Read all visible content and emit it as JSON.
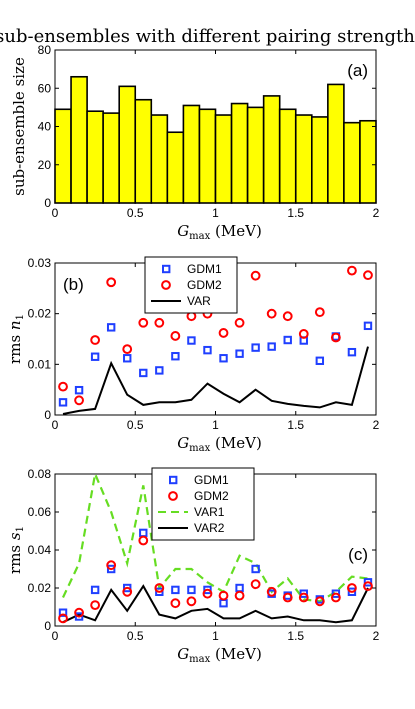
{
  "title": "sub-ensembles with different pairing strength",
  "chart_data": [
    {
      "type": "bar",
      "panel": "(a)",
      "ylabel": "sub-ensemble size",
      "xlabel": "G_max (MeV)",
      "xlabel_main": "G",
      "xlabel_sub": "max",
      "xlabel_unit": " (MeV)",
      "xlim": [
        0,
        2
      ],
      "ylim": [
        0,
        80
      ],
      "xticks": [
        "0",
        "0.5",
        "1",
        "1.5",
        "2"
      ],
      "yticks": [
        "0",
        "20",
        "40",
        "60",
        "80"
      ],
      "x": [
        0.05,
        0.15,
        0.25,
        0.35,
        0.45,
        0.55,
        0.65,
        0.75,
        0.85,
        0.95,
        1.05,
        1.15,
        1.25,
        1.35,
        1.45,
        1.55,
        1.65,
        1.75,
        1.85,
        1.95
      ],
      "bin_width": 0.1,
      "values": [
        49,
        66,
        48,
        47,
        61,
        54,
        46,
        37,
        51,
        49,
        46,
        52,
        50,
        56,
        49,
        46,
        45,
        62,
        42,
        43
      ],
      "bar_color": "#ffff00"
    },
    {
      "type": "line",
      "panel": "(b)",
      "ylabel_main": "rms ",
      "ylabel_var": "n",
      "ylabel_sub": "1",
      "xlabel_main": "G",
      "xlabel_sub": "max",
      "xlabel_unit": " (MeV)",
      "xlim": [
        0,
        2
      ],
      "ylim": [
        0,
        0.03
      ],
      "xticks": [
        "0",
        "0.5",
        "1",
        "1.5",
        "2"
      ],
      "yticks": [
        "0",
        "0.01",
        "0.02",
        "0.03"
      ],
      "legend_position": "top-center",
      "x": [
        0.05,
        0.15,
        0.25,
        0.35,
        0.45,
        0.55,
        0.65,
        0.75,
        0.85,
        0.95,
        1.05,
        1.15,
        1.25,
        1.35,
        1.45,
        1.55,
        1.65,
        1.75,
        1.85,
        1.95
      ],
      "series": [
        {
          "name": "GDM1",
          "marker": "square",
          "color": "#1f3fff",
          "values": [
            0.0025,
            0.0049,
            0.0115,
            0.0173,
            0.0112,
            0.0083,
            0.0088,
            0.0116,
            0.0147,
            0.0128,
            0.0112,
            0.0121,
            0.0133,
            0.0135,
            0.0148,
            0.0147,
            0.0107,
            0.0155,
            0.0124,
            0.0176
          ]
        },
        {
          "name": "GDM2",
          "marker": "circle",
          "color": "#ff0000",
          "values": [
            0.0056,
            0.0029,
            0.0148,
            0.0262,
            0.013,
            0.0182,
            0.0182,
            0.0156,
            0.0195,
            0.02,
            0.0162,
            0.0182,
            0.0275,
            0.02,
            0.0195,
            0.016,
            0.0203,
            0.0153,
            0.0285,
            0.0276
          ]
        },
        {
          "name": "VAR",
          "marker": "none",
          "line": "solid",
          "color": "#000000",
          "values": [
            0.0002,
            0.0008,
            0.0012,
            0.0102,
            0.004,
            0.002,
            0.0025,
            0.0025,
            0.003,
            0.0062,
            0.0042,
            0.0025,
            0.005,
            0.0028,
            0.0022,
            0.0018,
            0.0015,
            0.0025,
            0.002,
            0.0135
          ]
        }
      ]
    },
    {
      "type": "line",
      "panel": "(c)",
      "ylabel_main": "rms ",
      "ylabel_var": "s",
      "ylabel_sub": "1",
      "xlabel_main": "G",
      "xlabel_sub": "max",
      "xlabel_unit": " (MeV)",
      "xlim": [
        0,
        2
      ],
      "ylim": [
        0,
        0.08
      ],
      "xticks": [
        "0",
        "0.5",
        "1",
        "1.5",
        "2"
      ],
      "yticks": [
        "0",
        "0.02",
        "0.04",
        "0.06",
        "0.08"
      ],
      "legend_position": "top-center",
      "x": [
        0.05,
        0.15,
        0.25,
        0.35,
        0.45,
        0.55,
        0.65,
        0.75,
        0.85,
        0.95,
        1.05,
        1.15,
        1.25,
        1.35,
        1.45,
        1.55,
        1.65,
        1.75,
        1.85,
        1.95
      ],
      "series": [
        {
          "name": "GDM1",
          "marker": "square",
          "color": "#1f3fff",
          "values": [
            0.007,
            0.005,
            0.019,
            0.03,
            0.02,
            0.049,
            0.018,
            0.019,
            0.019,
            0.019,
            0.012,
            0.02,
            0.03,
            0.017,
            0.016,
            0.017,
            0.014,
            0.017,
            0.018,
            0.023
          ]
        },
        {
          "name": "GDM2",
          "marker": "circle",
          "color": "#ff0000",
          "values": [
            0.004,
            0.007,
            0.011,
            0.032,
            0.018,
            0.045,
            0.02,
            0.012,
            0.013,
            0.017,
            0.016,
            0.016,
            0.022,
            0.018,
            0.015,
            0.015,
            0.013,
            0.015,
            0.02,
            0.021
          ]
        },
        {
          "name": "VAR1",
          "marker": "none",
          "line": "dashed",
          "color": "#66dd22",
          "values": [
            0.015,
            0.033,
            0.08,
            0.06,
            0.033,
            0.074,
            0.02,
            0.03,
            0.03,
            0.023,
            0.018,
            0.037,
            0.033,
            0.018,
            0.025,
            0.014,
            0.013,
            0.018,
            0.026,
            0.025
          ]
        },
        {
          "name": "VAR2",
          "marker": "none",
          "line": "solid",
          "color": "#000000",
          "values": [
            0.002,
            0.006,
            0.003,
            0.019,
            0.008,
            0.021,
            0.006,
            0.004,
            0.008,
            0.009,
            0.004,
            0.004,
            0.008,
            0.004,
            0.005,
            0.003,
            0.003,
            0.002,
            0.003,
            0.02
          ]
        }
      ]
    }
  ]
}
